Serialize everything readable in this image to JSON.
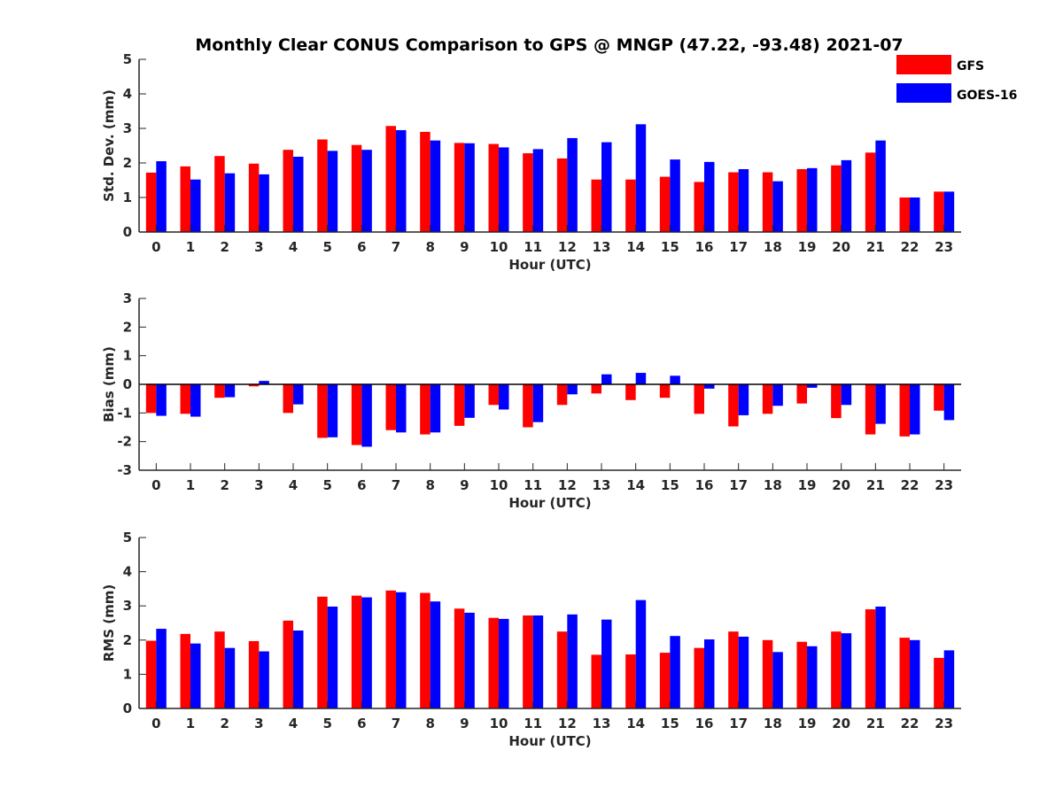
{
  "chart_data": {
    "type": "bar",
    "title": "Monthly Clear CONUS Comparison to GPS @ MNGP (47.22, -93.48) 2021-07",
    "categories": [
      "0",
      "1",
      "2",
      "3",
      "4",
      "5",
      "6",
      "7",
      "8",
      "9",
      "10",
      "11",
      "12",
      "13",
      "14",
      "15",
      "16",
      "17",
      "18",
      "19",
      "20",
      "21",
      "22",
      "23"
    ],
    "legend": {
      "placement": "top-right",
      "entries": [
        {
          "name": "GFS",
          "color": "#ff0000"
        },
        {
          "name": "GOES-16",
          "color": "#0000ff"
        }
      ]
    },
    "panels": [
      {
        "id": "std",
        "ylabel": "Std. Dev. (mm)",
        "xlabel": "Hour (UTC)",
        "ylim": [
          0,
          5
        ],
        "yticks": [
          0,
          1,
          2,
          3,
          4,
          5
        ],
        "series": [
          {
            "name": "GFS",
            "color": "#ff0000",
            "values": [
              1.72,
              1.9,
              2.2,
              1.98,
              2.38,
              2.68,
              2.52,
              3.07,
              2.9,
              2.58,
              2.55,
              2.28,
              2.13,
              1.52,
              1.52,
              1.6,
              1.45,
              1.73,
              1.73,
              1.82,
              1.93,
              2.3,
              1.0,
              1.17
            ]
          },
          {
            "name": "GOES-16",
            "color": "#0000ff",
            "values": [
              2.05,
              1.52,
              1.7,
              1.67,
              2.18,
              2.35,
              2.38,
              2.95,
              2.65,
              2.57,
              2.45,
              2.4,
              2.72,
              2.6,
              3.12,
              2.1,
              2.03,
              1.82,
              1.47,
              1.85,
              2.08,
              2.65,
              1.0,
              1.17
            ]
          }
        ]
      },
      {
        "id": "bias",
        "ylabel": "Bias (mm)",
        "xlabel": "Hour (UTC)",
        "ylim": [
          -3,
          3
        ],
        "yticks": [
          -3,
          -2,
          -1,
          0,
          1,
          2,
          3
        ],
        "series": [
          {
            "name": "GFS",
            "color": "#ff0000",
            "values": [
              -1.0,
              -1.03,
              -0.47,
              -0.07,
              -1.0,
              -1.87,
              -2.12,
              -1.6,
              -1.75,
              -1.45,
              -0.72,
              -1.5,
              -0.72,
              -0.32,
              -0.55,
              -0.47,
              -1.03,
              -1.47,
              -1.03,
              -0.67,
              -1.18,
              -1.75,
              -1.82,
              -0.92
            ]
          },
          {
            "name": "GOES-16",
            "color": "#0000ff",
            "values": [
              -1.1,
              -1.13,
              -0.45,
              0.12,
              -0.7,
              -1.85,
              -2.18,
              -1.68,
              -1.68,
              -1.17,
              -0.88,
              -1.32,
              -0.35,
              0.35,
              0.4,
              0.3,
              -0.15,
              -1.08,
              -0.75,
              -0.12,
              -0.72,
              -1.38,
              -1.75,
              -1.25
            ]
          }
        ]
      },
      {
        "id": "rms",
        "ylabel": "RMS (mm)",
        "xlabel": "Hour (UTC)",
        "ylim": [
          0,
          5
        ],
        "yticks": [
          0,
          1,
          2,
          3,
          4,
          5
        ],
        "series": [
          {
            "name": "GFS",
            "color": "#ff0000",
            "values": [
              1.98,
              2.18,
              2.25,
              1.97,
              2.57,
              3.27,
              3.3,
              3.45,
              3.38,
              2.92,
              2.65,
              2.72,
              2.25,
              1.57,
              1.58,
              1.63,
              1.77,
              2.25,
              2.0,
              1.95,
              2.25,
              2.9,
              2.07,
              1.48
            ]
          },
          {
            "name": "GOES-16",
            "color": "#0000ff",
            "values": [
              2.33,
              1.9,
              1.77,
              1.67,
              2.28,
              2.98,
              3.25,
              3.4,
              3.13,
              2.8,
              2.62,
              2.72,
              2.75,
              2.6,
              3.17,
              2.12,
              2.02,
              2.1,
              1.65,
              1.82,
              2.2,
              2.98,
              2.0,
              1.7
            ]
          }
        ]
      }
    ]
  }
}
